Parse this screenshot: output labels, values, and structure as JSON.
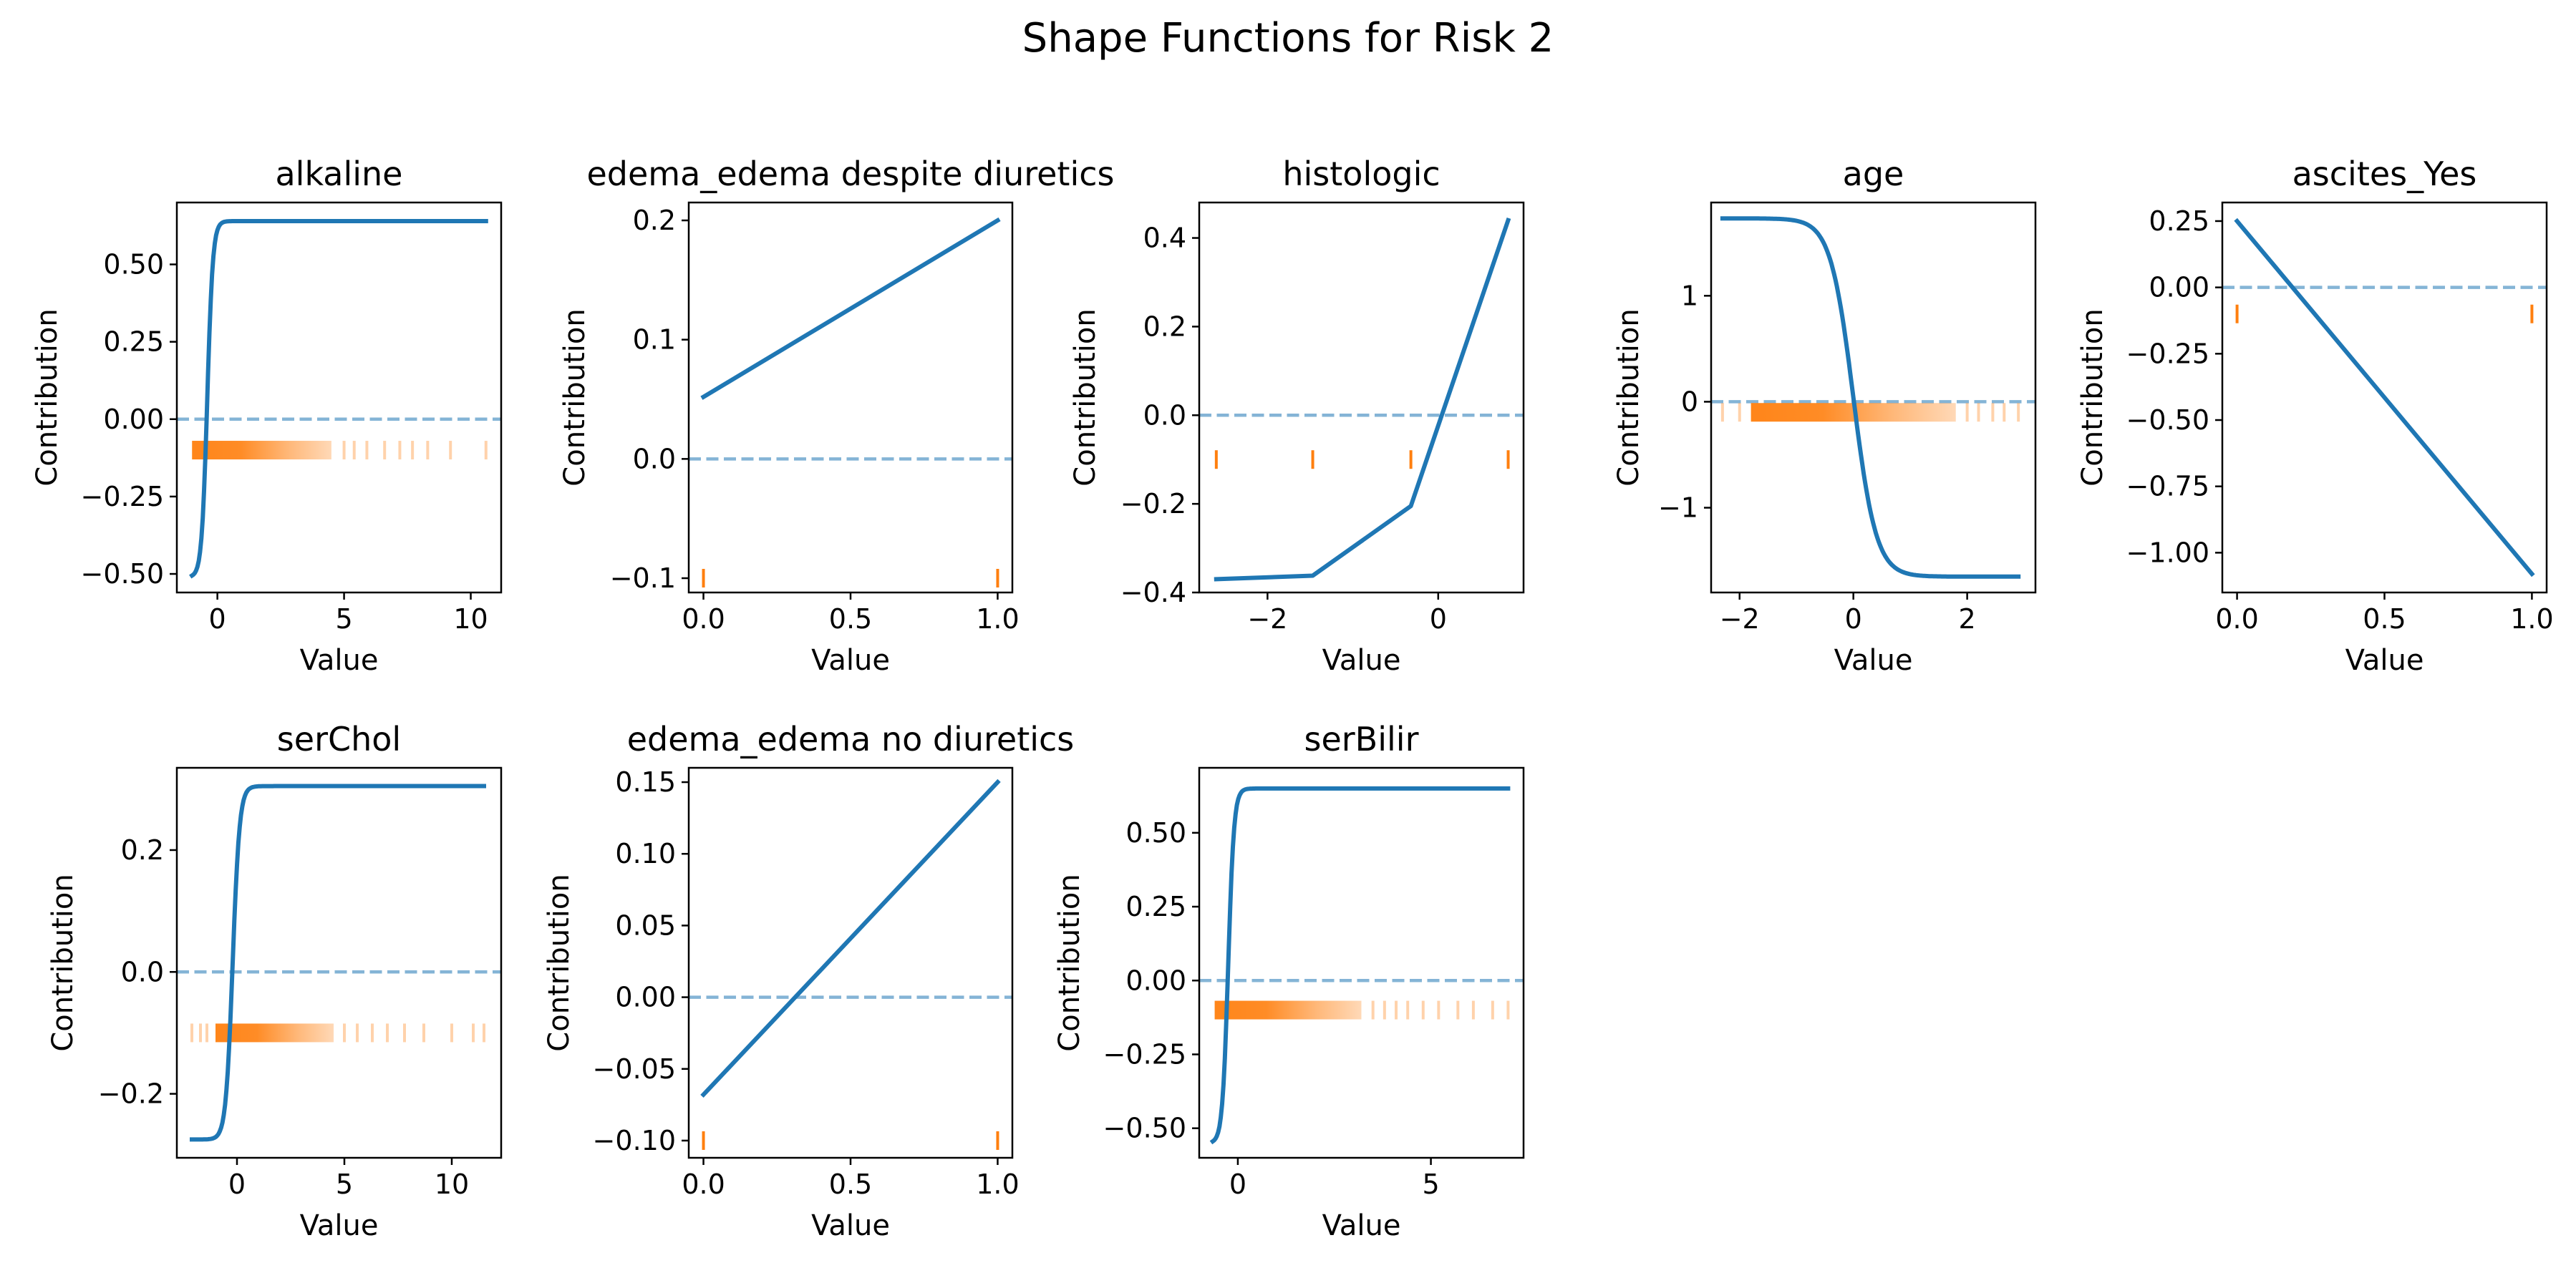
{
  "figure": {
    "title": "Shape Functions for Risk 2"
  },
  "colors": {
    "shape": "#1f77b4",
    "zero_line": "#1f77b4",
    "rug": "#ff7f0e",
    "frame": "#000000"
  },
  "chart_data": [
    {
      "type": "line",
      "title": "alkaline",
      "xlabel": "Value",
      "ylabel": "Contribution",
      "xlim": [
        -1.6,
        11.2
      ],
      "ylim": [
        -0.56,
        0.7
      ],
      "xticks": [
        0,
        5,
        10
      ],
      "xtick_labels": [
        "0",
        "5",
        "10"
      ],
      "yticks": [
        -0.5,
        -0.25,
        0.0,
        0.25,
        0.5
      ],
      "ytick_labels": [
        "−0.50",
        "−0.25",
        "0.00",
        "0.25",
        "0.50"
      ],
      "zero_line": true,
      "curve": {
        "kind": "sigmoid",
        "x_min": -1.0,
        "x_max": 10.6,
        "y_low": -0.51,
        "y_high": 0.64,
        "center": -0.4,
        "scale": 0.11
      },
      "rug": {
        "y": -0.1,
        "x_dense": [
          -1.0,
          4.5
        ],
        "x_sparse": [
          5.0,
          5.4,
          5.9,
          6.6,
          7.2,
          7.7,
          8.3,
          9.2,
          10.6
        ]
      }
    },
    {
      "type": "line",
      "title": "edema_edema despite diuretics",
      "xlabel": "Value",
      "ylabel": "Contribution",
      "xlim": [
        -0.05,
        1.05
      ],
      "ylim": [
        -0.112,
        0.215
      ],
      "xticks": [
        0.0,
        0.5,
        1.0
      ],
      "xtick_labels": [
        "0.0",
        "0.5",
        "1.0"
      ],
      "yticks": [
        -0.1,
        0.0,
        0.1,
        0.2
      ],
      "ytick_labels": [
        "−0.1",
        "0.0",
        "0.1",
        "0.2"
      ],
      "zero_line": true,
      "curve": {
        "kind": "points",
        "x": [
          0.0,
          1.0
        ],
        "y": [
          0.052,
          0.2
        ]
      },
      "rug": {
        "y": -0.1,
        "x_sparse": [
          0.0,
          1.0
        ]
      }
    },
    {
      "type": "line",
      "title": "histologic",
      "xlabel": "Value",
      "ylabel": "Contribution",
      "xlim": [
        -2.8,
        1.0
      ],
      "ylim": [
        -0.4,
        0.48
      ],
      "xticks": [
        -2,
        0
      ],
      "xtick_labels": [
        "−2",
        "0"
      ],
      "yticks": [
        -0.4,
        -0.2,
        0.0,
        0.2,
        0.4
      ],
      "ytick_labels": [
        "−0.4",
        "−0.2",
        "0.0",
        "0.2",
        "0.4"
      ],
      "zero_line": true,
      "curve": {
        "kind": "points",
        "x": [
          -2.6,
          -1.47,
          -0.32,
          0.82
        ],
        "y": [
          -0.37,
          -0.362,
          -0.205,
          0.44
        ]
      },
      "rug": {
        "y": -0.1,
        "x_sparse": [
          -2.6,
          -1.47,
          -0.32,
          0.82
        ]
      }
    },
    {
      "type": "line",
      "title": "age",
      "xlabel": "Value",
      "ylabel": "Contribution",
      "xlim": [
        -2.5,
        3.2
      ],
      "ylim": [
        -1.8,
        1.88
      ],
      "xticks": [
        -2,
        0,
        2
      ],
      "xtick_labels": [
        "−2",
        "0",
        "2"
      ],
      "yticks": [
        -1,
        0,
        1
      ],
      "ytick_labels": [
        "−1",
        "0",
        "1"
      ],
      "zero_line": true,
      "curve": {
        "kind": "sigmoid",
        "x_min": -2.3,
        "x_max": 2.9,
        "y_low": 1.73,
        "y_high": -1.65,
        "center": 0.0,
        "scale": 0.2
      },
      "rug": {
        "y": -0.1,
        "x_dense": [
          -1.8,
          1.8
        ],
        "x_sparse": [
          -2.3,
          -2.0,
          2.0,
          2.2,
          2.45,
          2.65,
          2.9
        ]
      }
    },
    {
      "type": "line",
      "title": "ascites_Yes",
      "xlabel": "Value",
      "ylabel": "Contribution",
      "xlim": [
        -0.05,
        1.05
      ],
      "ylim": [
        -1.15,
        0.32
      ],
      "xticks": [
        0.0,
        0.5,
        1.0
      ],
      "xtick_labels": [
        "0.0",
        "0.5",
        "1.0"
      ],
      "yticks": [
        -1.0,
        -0.75,
        -0.5,
        -0.25,
        0.0,
        0.25
      ],
      "ytick_labels": [
        "−1.00",
        "−0.75",
        "−0.50",
        "−0.25",
        "0.00",
        "0.25"
      ],
      "zero_line": true,
      "curve": {
        "kind": "points",
        "x": [
          0.0,
          1.0
        ],
        "y": [
          0.25,
          -1.08
        ]
      },
      "rug": {
        "y": -0.1,
        "x_sparse": [
          0.0,
          1.0
        ]
      }
    },
    {
      "type": "line",
      "title": "serChol",
      "xlabel": "Value",
      "ylabel": "Contribution",
      "xlim": [
        -2.8,
        12.3
      ],
      "ylim": [
        -0.305,
        0.335
      ],
      "xticks": [
        0,
        5,
        10
      ],
      "xtick_labels": [
        "0",
        "5",
        "10"
      ],
      "yticks": [
        -0.2,
        0.0,
        0.2
      ],
      "ytick_labels": [
        "−0.2",
        "0.0",
        "0.2"
      ],
      "zero_line": true,
      "curve": {
        "kind": "sigmoid",
        "x_min": -2.1,
        "x_max": 11.5,
        "y_low": -0.275,
        "y_high": 0.305,
        "center": -0.2,
        "scale": 0.16
      },
      "rug": {
        "y": -0.1,
        "x_dense": [
          -1.0,
          4.5
        ],
        "x_sparse": [
          -2.1,
          -1.7,
          -1.4,
          5.0,
          5.6,
          6.3,
          7.0,
          7.8,
          8.7,
          10.0,
          11.0,
          11.5
        ]
      }
    },
    {
      "type": "line",
      "title": "edema_edema no diuretics",
      "xlabel": "Value",
      "ylabel": "Contribution",
      "xlim": [
        -0.05,
        1.05
      ],
      "ylim": [
        -0.112,
        0.16
      ],
      "xticks": [
        0.0,
        0.5,
        1.0
      ],
      "xtick_labels": [
        "0.0",
        "0.5",
        "1.0"
      ],
      "yticks": [
        -0.1,
        -0.05,
        0.0,
        0.05,
        0.1,
        0.15
      ],
      "ytick_labels": [
        "−0.10",
        "−0.05",
        "0.00",
        "0.05",
        "0.10",
        "0.15"
      ],
      "zero_line": true,
      "curve": {
        "kind": "points",
        "x": [
          0.0,
          1.0
        ],
        "y": [
          -0.068,
          0.15
        ]
      },
      "rug": {
        "y": -0.1,
        "x_sparse": [
          0.0,
          1.0
        ]
      }
    },
    {
      "type": "line",
      "title": "serBilir",
      "xlabel": "Value",
      "ylabel": "Contribution",
      "xlim": [
        -1.0,
        7.4
      ],
      "ylim": [
        -0.6,
        0.72
      ],
      "xticks": [
        0,
        5
      ],
      "xtick_labels": [
        "0",
        "5"
      ],
      "yticks": [
        -0.5,
        -0.25,
        0.0,
        0.25,
        0.5
      ],
      "ytick_labels": [
        "−0.50",
        "−0.25",
        "0.00",
        "0.25",
        "0.50"
      ],
      "zero_line": true,
      "curve": {
        "kind": "sigmoid",
        "x_min": -0.65,
        "x_max": 7.0,
        "y_low": -0.55,
        "y_high": 0.65,
        "center": -0.25,
        "scale": 0.075
      },
      "rug": {
        "y": -0.1,
        "x_dense": [
          -0.6,
          3.2
        ],
        "x_sparse": [
          3.5,
          3.8,
          4.1,
          4.4,
          4.8,
          5.2,
          5.7,
          6.1,
          6.6,
          7.0
        ]
      }
    }
  ]
}
